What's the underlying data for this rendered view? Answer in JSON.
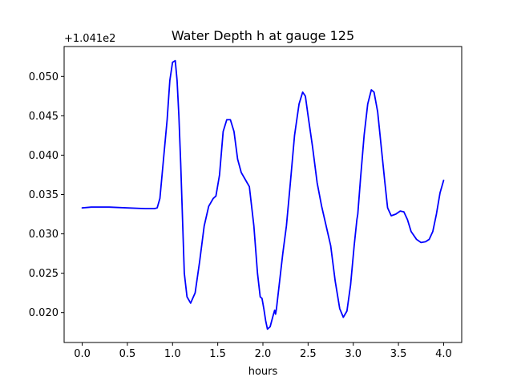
{
  "chart_data": {
    "type": "line",
    "title": "Water Depth h at gauge 125",
    "xlabel": "hours",
    "ylabel": "",
    "y_offset_label": "+1.041e2",
    "xlim": [
      -0.2,
      4.2
    ],
    "ylim": [
      0.0162,
      0.0538
    ],
    "x_ticks": [
      0.0,
      0.5,
      1.0,
      1.5,
      2.0,
      2.5,
      3.0,
      3.5,
      4.0
    ],
    "x_tick_labels": [
      "0.0",
      "0.5",
      "1.0",
      "1.5",
      "2.0",
      "2.5",
      "3.0",
      "3.5",
      "4.0"
    ],
    "y_ticks": [
      0.02,
      0.025,
      0.03,
      0.035,
      0.04,
      0.045,
      0.05
    ],
    "y_tick_labels": [
      "0.020",
      "0.025",
      "0.030",
      "0.035",
      "0.040",
      "0.045",
      "0.050"
    ],
    "grid": false,
    "legend": "none",
    "series": [
      {
        "color": "#0000ff",
        "x": [
          0.0,
          0.1,
          0.3,
          0.5,
          0.7,
          0.8,
          0.83,
          0.86,
          0.9,
          0.94,
          0.97,
          1.0,
          1.03,
          1.05,
          1.07,
          1.09,
          1.11,
          1.13,
          1.16,
          1.2,
          1.25,
          1.3,
          1.35,
          1.4,
          1.45,
          1.48,
          1.52,
          1.56,
          1.6,
          1.64,
          1.68,
          1.72,
          1.76,
          1.8,
          1.85,
          1.9,
          1.94,
          1.97,
          1.99,
          2.01,
          2.03,
          2.05,
          2.08,
          2.11,
          2.13,
          2.14,
          2.15,
          2.18,
          2.22,
          2.26,
          2.3,
          2.35,
          2.4,
          2.44,
          2.47,
          2.5,
          2.55,
          2.6,
          2.65,
          2.7,
          2.75,
          2.8,
          2.85,
          2.89,
          2.93,
          2.97,
          3.01,
          3.04,
          3.05,
          3.08,
          3.12,
          3.16,
          3.2,
          3.23,
          3.27,
          3.31,
          3.35,
          3.38,
          3.42,
          3.47,
          3.52,
          3.56,
          3.6,
          3.64,
          3.7,
          3.75,
          3.8,
          3.84,
          3.88,
          3.92,
          3.96,
          4.0
        ],
        "values": [
          0.0333,
          0.0334,
          0.0334,
          0.0333,
          0.0332,
          0.0332,
          0.0333,
          0.0345,
          0.0395,
          0.0445,
          0.0495,
          0.0518,
          0.052,
          0.0495,
          0.045,
          0.039,
          0.032,
          0.025,
          0.022,
          0.0212,
          0.0225,
          0.0265,
          0.031,
          0.0335,
          0.0345,
          0.0348,
          0.0375,
          0.043,
          0.0445,
          0.0445,
          0.043,
          0.0395,
          0.0378,
          0.037,
          0.036,
          0.031,
          0.025,
          0.022,
          0.0218,
          0.0205,
          0.019,
          0.0179,
          0.0182,
          0.0195,
          0.0203,
          0.0198,
          0.0205,
          0.0235,
          0.0275,
          0.031,
          0.036,
          0.0425,
          0.0465,
          0.048,
          0.0475,
          0.045,
          0.041,
          0.0365,
          0.0335,
          0.031,
          0.0285,
          0.024,
          0.0205,
          0.0194,
          0.0202,
          0.0235,
          0.0285,
          0.0318,
          0.0325,
          0.037,
          0.0425,
          0.0465,
          0.0483,
          0.048,
          0.0455,
          0.041,
          0.0365,
          0.0333,
          0.0323,
          0.0325,
          0.0329,
          0.0328,
          0.0318,
          0.0303,
          0.0293,
          0.0289,
          0.029,
          0.0293,
          0.0303,
          0.0325,
          0.0352,
          0.0368
        ]
      }
    ]
  }
}
